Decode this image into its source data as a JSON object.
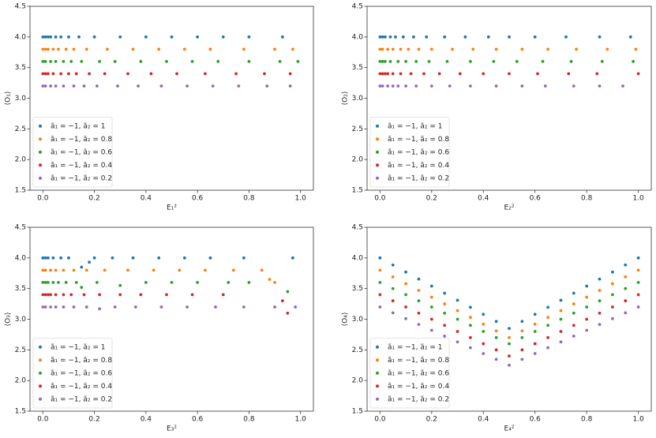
{
  "chart_data": [
    {
      "type": "scatter",
      "x_label": "E₁²",
      "y_label": "⟨O₁⟩",
      "legend": "lower left",
      "xlim": [
        -0.05,
        1.05
      ],
      "ylim": [
        1.5,
        4.5
      ],
      "xticks": [
        {
          "value": 0,
          "label": "0.0"
        },
        0.2,
        0.4,
        0.6,
        0.8,
        {
          "value": 1,
          "label": "1.0"
        }
      ],
      "yticks": [
        1.5,
        {
          "value": 2,
          "label": "2.0"
        },
        2.5,
        {
          "value": 3,
          "label": "3.0"
        },
        3.5,
        {
          "value": 4,
          "label": "4.0"
        },
        4.5
      ],
      "series": [
        {
          "name": "ã₁ = −1, ã₂ = 1",
          "color": "#1f77b4",
          "x": [
            0,
            0.01,
            0.02,
            0.03,
            0.05,
            0.07,
            0.1,
            0.14,
            0.2,
            0.3,
            0.4,
            0.5,
            0.6,
            0.7,
            0.8,
            0.93
          ],
          "values": [
            4,
            4,
            4,
            4,
            4,
            4,
            4,
            4,
            4,
            4,
            4,
            4,
            4,
            4,
            4,
            4
          ]
        },
        {
          "name": "ã₁ = −1, ã₂ = 0.8",
          "color": "#ff7f0e",
          "x": [
            0,
            0.01,
            0.02,
            0.04,
            0.06,
            0.09,
            0.12,
            0.17,
            0.25,
            0.35,
            0.45,
            0.55,
            0.65,
            0.78,
            0.9,
            0.97
          ],
          "values": [
            3.8,
            3.8,
            3.8,
            3.8,
            3.8,
            3.8,
            3.8,
            3.8,
            3.8,
            3.8,
            3.8,
            3.8,
            3.8,
            3.8,
            3.8,
            3.8
          ]
        },
        {
          "name": "ã₁ = −1, ã₂ = 0.6",
          "color": "#2ca02c",
          "x": [
            0,
            0.01,
            0.03,
            0.05,
            0.08,
            0.11,
            0.15,
            0.22,
            0.28,
            0.38,
            0.48,
            0.58,
            0.68,
            0.8,
            0.92,
            0.99
          ],
          "values": [
            3.6,
            3.6,
            3.6,
            3.6,
            3.6,
            3.6,
            3.6,
            3.6,
            3.6,
            3.6,
            3.6,
            3.6,
            3.6,
            3.6,
            3.6,
            3.6
          ]
        },
        {
          "name": "ã₁ = −1, ã₂ = 0.4",
          "color": "#d62728",
          "x": [
            0,
            0.01,
            0.02,
            0.04,
            0.07,
            0.1,
            0.13,
            0.18,
            0.24,
            0.33,
            0.42,
            0.52,
            0.63,
            0.75,
            0.86,
            0.96
          ],
          "values": [
            3.4,
            3.4,
            3.4,
            3.4,
            3.4,
            3.4,
            3.4,
            3.4,
            3.4,
            3.4,
            3.4,
            3.4,
            3.4,
            3.4,
            3.4,
            3.4
          ]
        },
        {
          "name": "ã₁ = −1, ã₂ = 0.2",
          "color": "#9467bd",
          "x": [
            0,
            0.01,
            0.03,
            0.05,
            0.08,
            0.12,
            0.16,
            0.21,
            0.29,
            0.37,
            0.46,
            0.56,
            0.66,
            0.76,
            0.87,
            0.96
          ],
          "values": [
            3.2,
            3.2,
            3.2,
            3.2,
            3.2,
            3.2,
            3.2,
            3.2,
            3.2,
            3.2,
            3.2,
            3.2,
            3.2,
            3.2,
            3.2,
            3.2
          ]
        }
      ]
    },
    {
      "type": "scatter",
      "x_label": "E₂²",
      "y_label": "⟨O₂⟩",
      "legend": "lower left",
      "xlim": [
        -0.05,
        1.05
      ],
      "ylim": [
        1.5,
        4.5
      ],
      "xticks": [
        {
          "value": 0,
          "label": "0.0"
        },
        0.2,
        0.4,
        0.6,
        0.8,
        {
          "value": 1,
          "label": "1.0"
        }
      ],
      "yticks": [
        1.5,
        {
          "value": 2,
          "label": "2.0"
        },
        2.5,
        {
          "value": 3,
          "label": "3.0"
        },
        3.5,
        {
          "value": 4,
          "label": "4.0"
        },
        4.5
      ],
      "series": [
        {
          "name": "ã₁ = −1, ã₂ = 1",
          "color": "#1f77b4",
          "x": [
            0,
            0.01,
            0.02,
            0.04,
            0.06,
            0.09,
            0.13,
            0.18,
            0.25,
            0.33,
            0.42,
            0.5,
            0.6,
            0.72,
            0.85,
            0.97
          ],
          "values": [
            4,
            4,
            4,
            4,
            4,
            4,
            4,
            4,
            4,
            4,
            4,
            4,
            4,
            4,
            4,
            4
          ]
        },
        {
          "name": "ã₁ = −1, ã₂ = 0.8",
          "color": "#ff7f0e",
          "x": [
            0,
            0.01,
            0.03,
            0.05,
            0.08,
            0.11,
            0.15,
            0.2,
            0.28,
            0.36,
            0.45,
            0.55,
            0.65,
            0.76,
            0.88,
            0.99
          ],
          "values": [
            3.8,
            3.8,
            3.8,
            3.8,
            3.8,
            3.8,
            3.8,
            3.8,
            3.8,
            3.8,
            3.8,
            3.8,
            3.8,
            3.8,
            3.8,
            3.8
          ]
        },
        {
          "name": "ã₁ = −1, ã₂ = 0.6",
          "color": "#2ca02c",
          "x": [
            0,
            0.01,
            0.02,
            0.04,
            0.07,
            0.1,
            0.14,
            0.19,
            0.26,
            0.35,
            0.44,
            0.53,
            0.63,
            0.74,
            0.86,
            0.98
          ],
          "values": [
            3.6,
            3.6,
            3.6,
            3.6,
            3.6,
            3.6,
            3.6,
            3.6,
            3.6,
            3.6,
            3.6,
            3.6,
            3.6,
            3.6,
            3.6,
            3.6
          ]
        },
        {
          "name": "ã₁ = −1, ã₂ = 0.4",
          "color": "#d62728",
          "x": [
            0,
            0.01,
            0.02,
            0.03,
            0.05,
            0.08,
            0.12,
            0.17,
            0.23,
            0.31,
            0.4,
            0.5,
            0.61,
            0.73,
            0.84,
            1
          ],
          "values": [
            3.4,
            3.4,
            3.4,
            3.4,
            3.4,
            3.4,
            3.4,
            3.4,
            3.4,
            3.4,
            3.4,
            3.4,
            3.4,
            3.4,
            3.4,
            3.4
          ]
        },
        {
          "name": "ã₁ = −1, ã₂ = 0.2",
          "color": "#9467bd",
          "x": [
            0,
            0.01,
            0.03,
            0.05,
            0.07,
            0.1,
            0.14,
            0.2,
            0.27,
            0.35,
            0.45,
            0.55,
            0.64,
            0.75,
            0.85,
            0.94
          ],
          "values": [
            3.2,
            3.2,
            3.2,
            3.2,
            3.2,
            3.2,
            3.2,
            3.2,
            3.2,
            3.2,
            3.2,
            3.2,
            3.2,
            3.2,
            3.2,
            3.2
          ]
        }
      ]
    },
    {
      "type": "scatter",
      "x_label": "E₃²",
      "y_label": "⟨O₃⟩",
      "legend": "lower left",
      "xlim": [
        -0.05,
        1.05
      ],
      "ylim": [
        1.5,
        4.5
      ],
      "xticks": [
        {
          "value": 0,
          "label": "0.0"
        },
        0.2,
        0.4,
        0.6,
        0.8,
        {
          "value": 1,
          "label": "1.0"
        }
      ],
      "yticks": [
        1.5,
        {
          "value": 2,
          "label": "2.0"
        },
        2.5,
        {
          "value": 3,
          "label": "3.0"
        },
        3.5,
        {
          "value": 4,
          "label": "4.0"
        },
        4.5
      ],
      "series": [
        {
          "name": "ã₁ = −1, ã₂ = 1",
          "color": "#1f77b4",
          "x": [
            0,
            0.01,
            0.02,
            0.04,
            0.07,
            0.1,
            0.15,
            0.18,
            0.2,
            0.27,
            0.35,
            0.45,
            0.55,
            0.65,
            0.78,
            0.97
          ],
          "values": [
            4,
            4,
            4,
            4,
            4,
            4,
            3.85,
            3.93,
            4,
            4,
            4,
            4,
            4,
            4,
            4,
            4
          ]
        },
        {
          "name": "ã₁ = −1, ã₂ = 0.8",
          "color": "#ff7f0e",
          "x": [
            0,
            0.01,
            0.03,
            0.05,
            0.08,
            0.12,
            0.17,
            0.24,
            0.33,
            0.43,
            0.53,
            0.63,
            0.74,
            0.85,
            0.88,
            0.9
          ],
          "values": [
            3.8,
            3.8,
            3.8,
            3.8,
            3.8,
            3.8,
            3.8,
            3.8,
            3.8,
            3.8,
            3.8,
            3.8,
            3.8,
            3.8,
            3.65,
            3.6
          ]
        },
        {
          "name": "ã₁ = −1, ã₂ = 0.6",
          "color": "#2ca02c",
          "x": [
            0,
            0.01,
            0.02,
            0.04,
            0.06,
            0.09,
            0.13,
            0.15,
            0.21,
            0.3,
            0.4,
            0.5,
            0.6,
            0.72,
            0.8,
            0.95
          ],
          "values": [
            3.6,
            3.6,
            3.6,
            3.6,
            3.6,
            3.6,
            3.6,
            3.52,
            3.6,
            3.55,
            3.6,
            3.6,
            3.6,
            3.6,
            3.6,
            3.45
          ]
        },
        {
          "name": "ã₁ = −1, ã₂ = 0.4",
          "color": "#d62728",
          "x": [
            0,
            0.01,
            0.02,
            0.03,
            0.05,
            0.08,
            0.11,
            0.16,
            0.22,
            0.3,
            0.38,
            0.48,
            0.58,
            0.7,
            0.93,
            0.95
          ],
          "values": [
            3.4,
            3.4,
            3.4,
            3.4,
            3.4,
            3.4,
            3.4,
            3.4,
            3.4,
            3.4,
            3.4,
            3.4,
            3.4,
            3.4,
            3.3,
            3.1
          ]
        },
        {
          "name": "ã₁ = −1, ã₂ = 0.2",
          "color": "#9467bd",
          "x": [
            0,
            0.01,
            0.03,
            0.05,
            0.08,
            0.12,
            0.17,
            0.22,
            0.28,
            0.36,
            0.46,
            0.56,
            0.67,
            0.78,
            0.9,
            0.98
          ],
          "values": [
            3.2,
            3.2,
            3.2,
            3.2,
            3.2,
            3.2,
            3.2,
            3.17,
            3.2,
            3.2,
            3.2,
            3.2,
            3.2,
            3.2,
            3.2,
            3.2
          ]
        }
      ]
    },
    {
      "type": "scatter",
      "x_label": "E₄²",
      "y_label": "⟨O₄⟩",
      "legend": "lower left",
      "xlim": [
        -0.05,
        1.05
      ],
      "ylim": [
        1.5,
        4.5
      ],
      "xticks": [
        {
          "value": 0,
          "label": "0.0"
        },
        0.2,
        0.4,
        0.6,
        0.8,
        {
          "value": 1,
          "label": "1.0"
        }
      ],
      "yticks": [
        1.5,
        {
          "value": 2,
          "label": "2.0"
        },
        2.5,
        {
          "value": 3,
          "label": "3.0"
        },
        3.5,
        {
          "value": 4,
          "label": "4.0"
        },
        4.5
      ],
      "series": [
        {
          "name": "ã₁ = −1, ã₂ = 1",
          "color": "#1f77b4",
          "x": [
            0,
            0.05,
            0.1,
            0.15,
            0.2,
            0.25,
            0.3,
            0.35,
            0.4,
            0.45,
            0.5,
            0.55,
            0.6,
            0.65,
            0.7,
            0.75,
            0.8,
            0.85,
            0.9,
            0.95,
            1
          ],
          "values": [
            4,
            3.885,
            3.77,
            3.655,
            3.54,
            3.425,
            3.31,
            3.195,
            3.08,
            2.965,
            2.85,
            2.965,
            3.08,
            3.195,
            3.31,
            3.425,
            3.54,
            3.655,
            3.77,
            3.885,
            4
          ]
        },
        {
          "name": "ã₁ = −1, ã₂ = 0.8",
          "color": "#ff7f0e",
          "x": [
            0,
            0.05,
            0.1,
            0.15,
            0.2,
            0.25,
            0.3,
            0.35,
            0.4,
            0.45,
            0.5,
            0.55,
            0.6,
            0.65,
            0.7,
            0.75,
            0.8,
            0.85,
            0.9,
            0.95,
            1
          ],
          "values": [
            3.8,
            3.69,
            3.58,
            3.47,
            3.36,
            3.25,
            3.14,
            3.03,
            2.92,
            2.81,
            2.7,
            2.81,
            2.92,
            3.03,
            3.14,
            3.25,
            3.36,
            3.47,
            3.58,
            3.69,
            3.8
          ]
        },
        {
          "name": "ã₁ = −1, ã₂ = 0.6",
          "color": "#2ca02c",
          "x": [
            0,
            0.05,
            0.1,
            0.15,
            0.2,
            0.25,
            0.3,
            0.35,
            0.4,
            0.45,
            0.5,
            0.55,
            0.6,
            0.65,
            0.7,
            0.75,
            0.8,
            0.85,
            0.9,
            0.95,
            1
          ],
          "values": [
            3.6,
            3.5,
            3.4,
            3.3,
            3.2,
            3.1,
            3.0,
            2.9,
            2.8,
            2.7,
            2.6,
            2.7,
            2.8,
            2.9,
            3.0,
            3.1,
            3.2,
            3.3,
            3.4,
            3.5,
            3.6
          ]
        },
        {
          "name": "ã₁ = −1, ã₂ = 0.4",
          "color": "#d62728",
          "x": [
            0,
            0.05,
            0.1,
            0.15,
            0.2,
            0.25,
            0.3,
            0.35,
            0.4,
            0.45,
            0.5,
            0.55,
            0.6,
            0.65,
            0.7,
            0.75,
            0.8,
            0.85,
            0.9,
            0.95,
            1
          ],
          "values": [
            3.4,
            3.3,
            3.2,
            3.1,
            3.0,
            2.9,
            2.8,
            2.7,
            2.6,
            2.5,
            2.4,
            2.5,
            2.6,
            2.7,
            2.8,
            2.9,
            3.0,
            3.1,
            3.2,
            3.3,
            3.4
          ]
        },
        {
          "name": "ã₁ = −1, ã₂ = 0.2",
          "color": "#9467bd",
          "x": [
            0,
            0.05,
            0.1,
            0.15,
            0.2,
            0.25,
            0.3,
            0.35,
            0.4,
            0.45,
            0.5,
            0.55,
            0.6,
            0.65,
            0.7,
            0.75,
            0.8,
            0.85,
            0.9,
            0.95,
            1
          ],
          "values": [
            3.2,
            3.105,
            3.01,
            2.915,
            2.82,
            2.725,
            2.63,
            2.535,
            2.44,
            2.345,
            2.25,
            2.345,
            2.44,
            2.535,
            2.63,
            2.725,
            2.82,
            2.915,
            3.01,
            3.105,
            3.2
          ]
        }
      ]
    }
  ]
}
